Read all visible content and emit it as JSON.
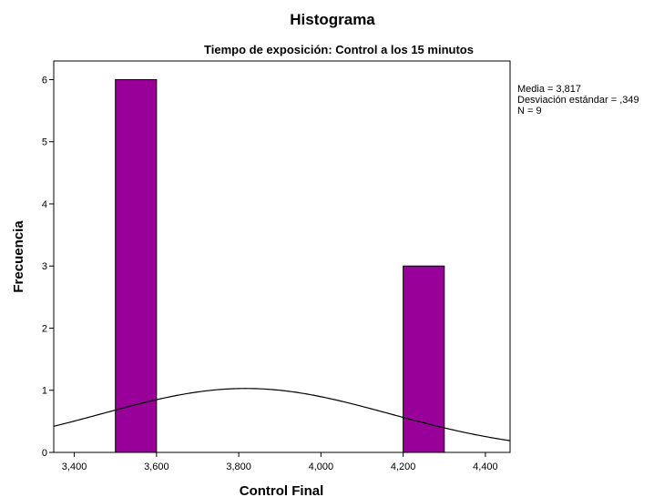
{
  "chart_data": {
    "type": "bar",
    "title": "Histograma",
    "subtitle": "Tiempo de exposición: Control a los 15 minutos",
    "xlabel": "Control Final",
    "ylabel": "Frecuencia",
    "xlim": [
      3.35,
      4.46
    ],
    "ylim": [
      0,
      6.3
    ],
    "x_ticks": [
      {
        "value": 3.4,
        "label": "3,400"
      },
      {
        "value": 3.6,
        "label": "3,600"
      },
      {
        "value": 3.8,
        "label": "3,800"
      },
      {
        "value": 4.0,
        "label": "4,000"
      },
      {
        "value": 4.2,
        "label": "4,200"
      },
      {
        "value": 4.4,
        "label": "4,400"
      }
    ],
    "y_ticks": [
      {
        "value": 0,
        "label": "0"
      },
      {
        "value": 1,
        "label": "1"
      },
      {
        "value": 2,
        "label": "2"
      },
      {
        "value": 3,
        "label": "3"
      },
      {
        "value": 4,
        "label": "4"
      },
      {
        "value": 5,
        "label": "5"
      },
      {
        "value": 6,
        "label": "6"
      }
    ],
    "bins": [
      {
        "start": 3.5,
        "end": 3.6,
        "count": 6
      },
      {
        "start": 4.2,
        "end": 4.3,
        "count": 3
      }
    ],
    "bar_color": "#990099",
    "normal_curve": {
      "mean": 3.817,
      "sd": 0.349,
      "n": 9,
      "bin_width": 0.1
    },
    "stats_lines": [
      "Media = 3,817",
      "Desviación estándar = ,349",
      "N = 9"
    ],
    "grid": false
  }
}
